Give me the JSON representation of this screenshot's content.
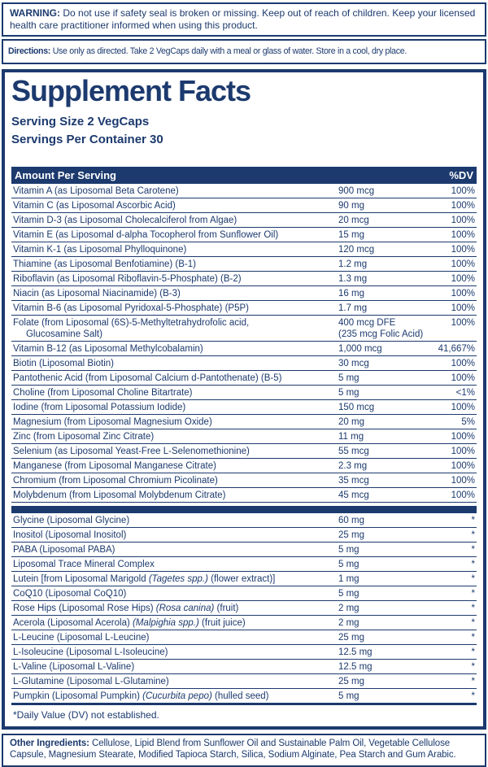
{
  "warning": {
    "label": "WARNING:",
    "text": "Do not use if safety seal is broken or missing. Keep out of reach of children. Keep your licensed health care practitioner informed when using this product."
  },
  "directions": {
    "label": "Directions:",
    "text": "Use only as directed. Take 2 VegCaps daily with a meal or glass of water. Store in a cool, dry place."
  },
  "panel": {
    "title": "Supplement Facts",
    "serving_size": "Serving Size 2 VegCaps",
    "servings_per_container": "Servings Per Container 30",
    "colors": {
      "navy": "#1c3a6e"
    },
    "header": {
      "amount_label": "Amount Per Serving",
      "dv_label": "%DV"
    },
    "rows_main": [
      {
        "name": [
          {
            "t": "Vitamin A (as Liposomal Beta Carotene)"
          }
        ],
        "amount": "900 mcg",
        "dv": "100%"
      },
      {
        "name": [
          {
            "t": "Vitamin C (as Liposomal Ascorbic Acid)"
          }
        ],
        "amount": "90 mg",
        "dv": "100%"
      },
      {
        "name": [
          {
            "t": "Vitamin D-3 (as Liposomal Cholecalciferol from Algae)"
          }
        ],
        "amount": "20 mcg",
        "dv": "100%"
      },
      {
        "name": [
          {
            "t": "Vitamin E (as Liposomal d-alpha Tocopherol from Sunflower Oil)"
          }
        ],
        "amount": "15 mg",
        "dv": "100%"
      },
      {
        "name": [
          {
            "t": "Vitamin K-1 (as Liposomal Phylloquinone)"
          }
        ],
        "amount": "120 mcg",
        "dv": "100%"
      },
      {
        "name": [
          {
            "t": "Thiamine (as Liposomal Benfotiamine) (B-1)"
          }
        ],
        "amount": "1.2 mg",
        "dv": "100%"
      },
      {
        "name": [
          {
            "t": "Riboflavin (as Liposomal Riboflavin-5-Phosphate) (B-2)"
          }
        ],
        "amount": "1.3 mg",
        "dv": "100%"
      },
      {
        "name": [
          {
            "t": "Niacin (as Liposomal Niacinamide) (B-3)"
          }
        ],
        "amount": "16 mg",
        "dv": "100%"
      },
      {
        "name": [
          {
            "t": "Vitamin B-6 (as Liposomal Pyridoxal-5-Phosphate) (P5P)"
          }
        ],
        "amount": "1.7 mg",
        "dv": "100%"
      },
      {
        "name": [
          {
            "t": "Folate (from Liposomal (6S)-5-Methyltetrahydrofolic acid,\n     Glucosamine Salt)"
          }
        ],
        "amount": "400 mcg DFE\n(235 mcg Folic Acid)",
        "dv": "100%"
      },
      {
        "name": [
          {
            "t": "Vitamin B-12 (as Liposomal Methylcobalamin)"
          }
        ],
        "amount": "1,000 mcg",
        "dv": "41,667%"
      },
      {
        "name": [
          {
            "t": "Biotin (Liposomal Biotin)"
          }
        ],
        "amount": "30 mcg",
        "dv": "100%"
      },
      {
        "name": [
          {
            "t": "Pantothenic Acid (from Liposomal Calcium d-Pantothenate) (B-5)"
          }
        ],
        "amount": "5 mg",
        "dv": "100%"
      },
      {
        "name": [
          {
            "t": "Choline (from Liposomal Choline Bitartrate)"
          }
        ],
        "amount": "5 mg",
        "dv": "<1%"
      },
      {
        "name": [
          {
            "t": "Iodine (from Liposomal Potassium Iodide)"
          }
        ],
        "amount": "150 mcg",
        "dv": "100%"
      },
      {
        "name": [
          {
            "t": "Magnesium (from Liposomal Magnesium Oxide)"
          }
        ],
        "amount": "20 mg",
        "dv": "5%"
      },
      {
        "name": [
          {
            "t": "Zinc (from Liposomal Zinc Citrate)"
          }
        ],
        "amount": "11 mg",
        "dv": "100%"
      },
      {
        "name": [
          {
            "t": "Selenium (as Liposomal Yeast-Free L-Selenomethionine)"
          }
        ],
        "amount": "55 mcg",
        "dv": "100%"
      },
      {
        "name": [
          {
            "t": "Manganese (from Liposomal Manganese Citrate)"
          }
        ],
        "amount": "2.3 mg",
        "dv": "100%"
      },
      {
        "name": [
          {
            "t": "Chromium (from Liposomal Chromium Picolinate)"
          }
        ],
        "amount": "35 mcg",
        "dv": "100%"
      },
      {
        "name": [
          {
            "t": "Molybdenum (from Liposomal Molybdenum Citrate)"
          }
        ],
        "amount": "45 mcg",
        "dv": "100%"
      }
    ],
    "rows_other": [
      {
        "name": [
          {
            "t": "Glycine (Liposomal Glycine)"
          }
        ],
        "amount": "60 mg",
        "dv": "*"
      },
      {
        "name": [
          {
            "t": "Inositol (Liposomal Inositol)"
          }
        ],
        "amount": "25 mg",
        "dv": "*"
      },
      {
        "name": [
          {
            "t": "PABA (Liposomal PABA)"
          }
        ],
        "amount": "5 mg",
        "dv": "*"
      },
      {
        "name": [
          {
            "t": "Liposomal Trace Mineral Complex"
          }
        ],
        "amount": "5 mg",
        "dv": "*"
      },
      {
        "name": [
          {
            "t": "Lutein [from Liposomal Marigold "
          },
          {
            "t": "(Tagetes spp.)",
            "i": true
          },
          {
            "t": " (flower extract)]"
          }
        ],
        "amount": "1 mg",
        "dv": "*"
      },
      {
        "name": [
          {
            "t": "CoQ10 (Liposomal CoQ10)"
          }
        ],
        "amount": "5 mg",
        "dv": "*"
      },
      {
        "name": [
          {
            "t": "Rose Hips (Liposomal Rose Hips) "
          },
          {
            "t": "(Rosa canina)",
            "i": true
          },
          {
            "t": " (fruit)"
          }
        ],
        "amount": "2 mg",
        "dv": "*"
      },
      {
        "name": [
          {
            "t": "Acerola (Liposomal Acerola) "
          },
          {
            "t": "(Malpighia spp.)",
            "i": true
          },
          {
            "t": " (fruit juice)"
          }
        ],
        "amount": "2 mg",
        "dv": "*"
      },
      {
        "name": [
          {
            "t": "L-Leucine (Liposomal L-Leucine)"
          }
        ],
        "amount": "25 mg",
        "dv": "*"
      },
      {
        "name": [
          {
            "t": "L-Isoleucine (Liposomal L-Isoleucine)"
          }
        ],
        "amount": "12.5 mg",
        "dv": "*"
      },
      {
        "name": [
          {
            "t": "L-Valine (Liposomal L-Valine)"
          }
        ],
        "amount": "12.5 mg",
        "dv": "*"
      },
      {
        "name": [
          {
            "t": "L-Glutamine (Liposomal L-Glutamine)"
          }
        ],
        "amount": "25 mg",
        "dv": "*"
      },
      {
        "name": [
          {
            "t": "Pumpkin (Liposomal Pumpkin) "
          },
          {
            "t": "(Cucurbita pepo)",
            "i": true
          },
          {
            "t": " (hulled seed)"
          }
        ],
        "amount": "5 mg",
        "dv": "*"
      }
    ],
    "footnote": "*Daily Value (DV) not established."
  },
  "other_ingredients": {
    "label": "Other Ingredients:",
    "text": "Cellulose, Lipid Blend from Sunflower Oil and Sustainable Palm Oil, Vegetable Cellulose Capsule, Magnesium Stearate, Modified Tapioca Starch, Silica, Sodium Alginate, Pea Starch and Gum Arabic."
  }
}
